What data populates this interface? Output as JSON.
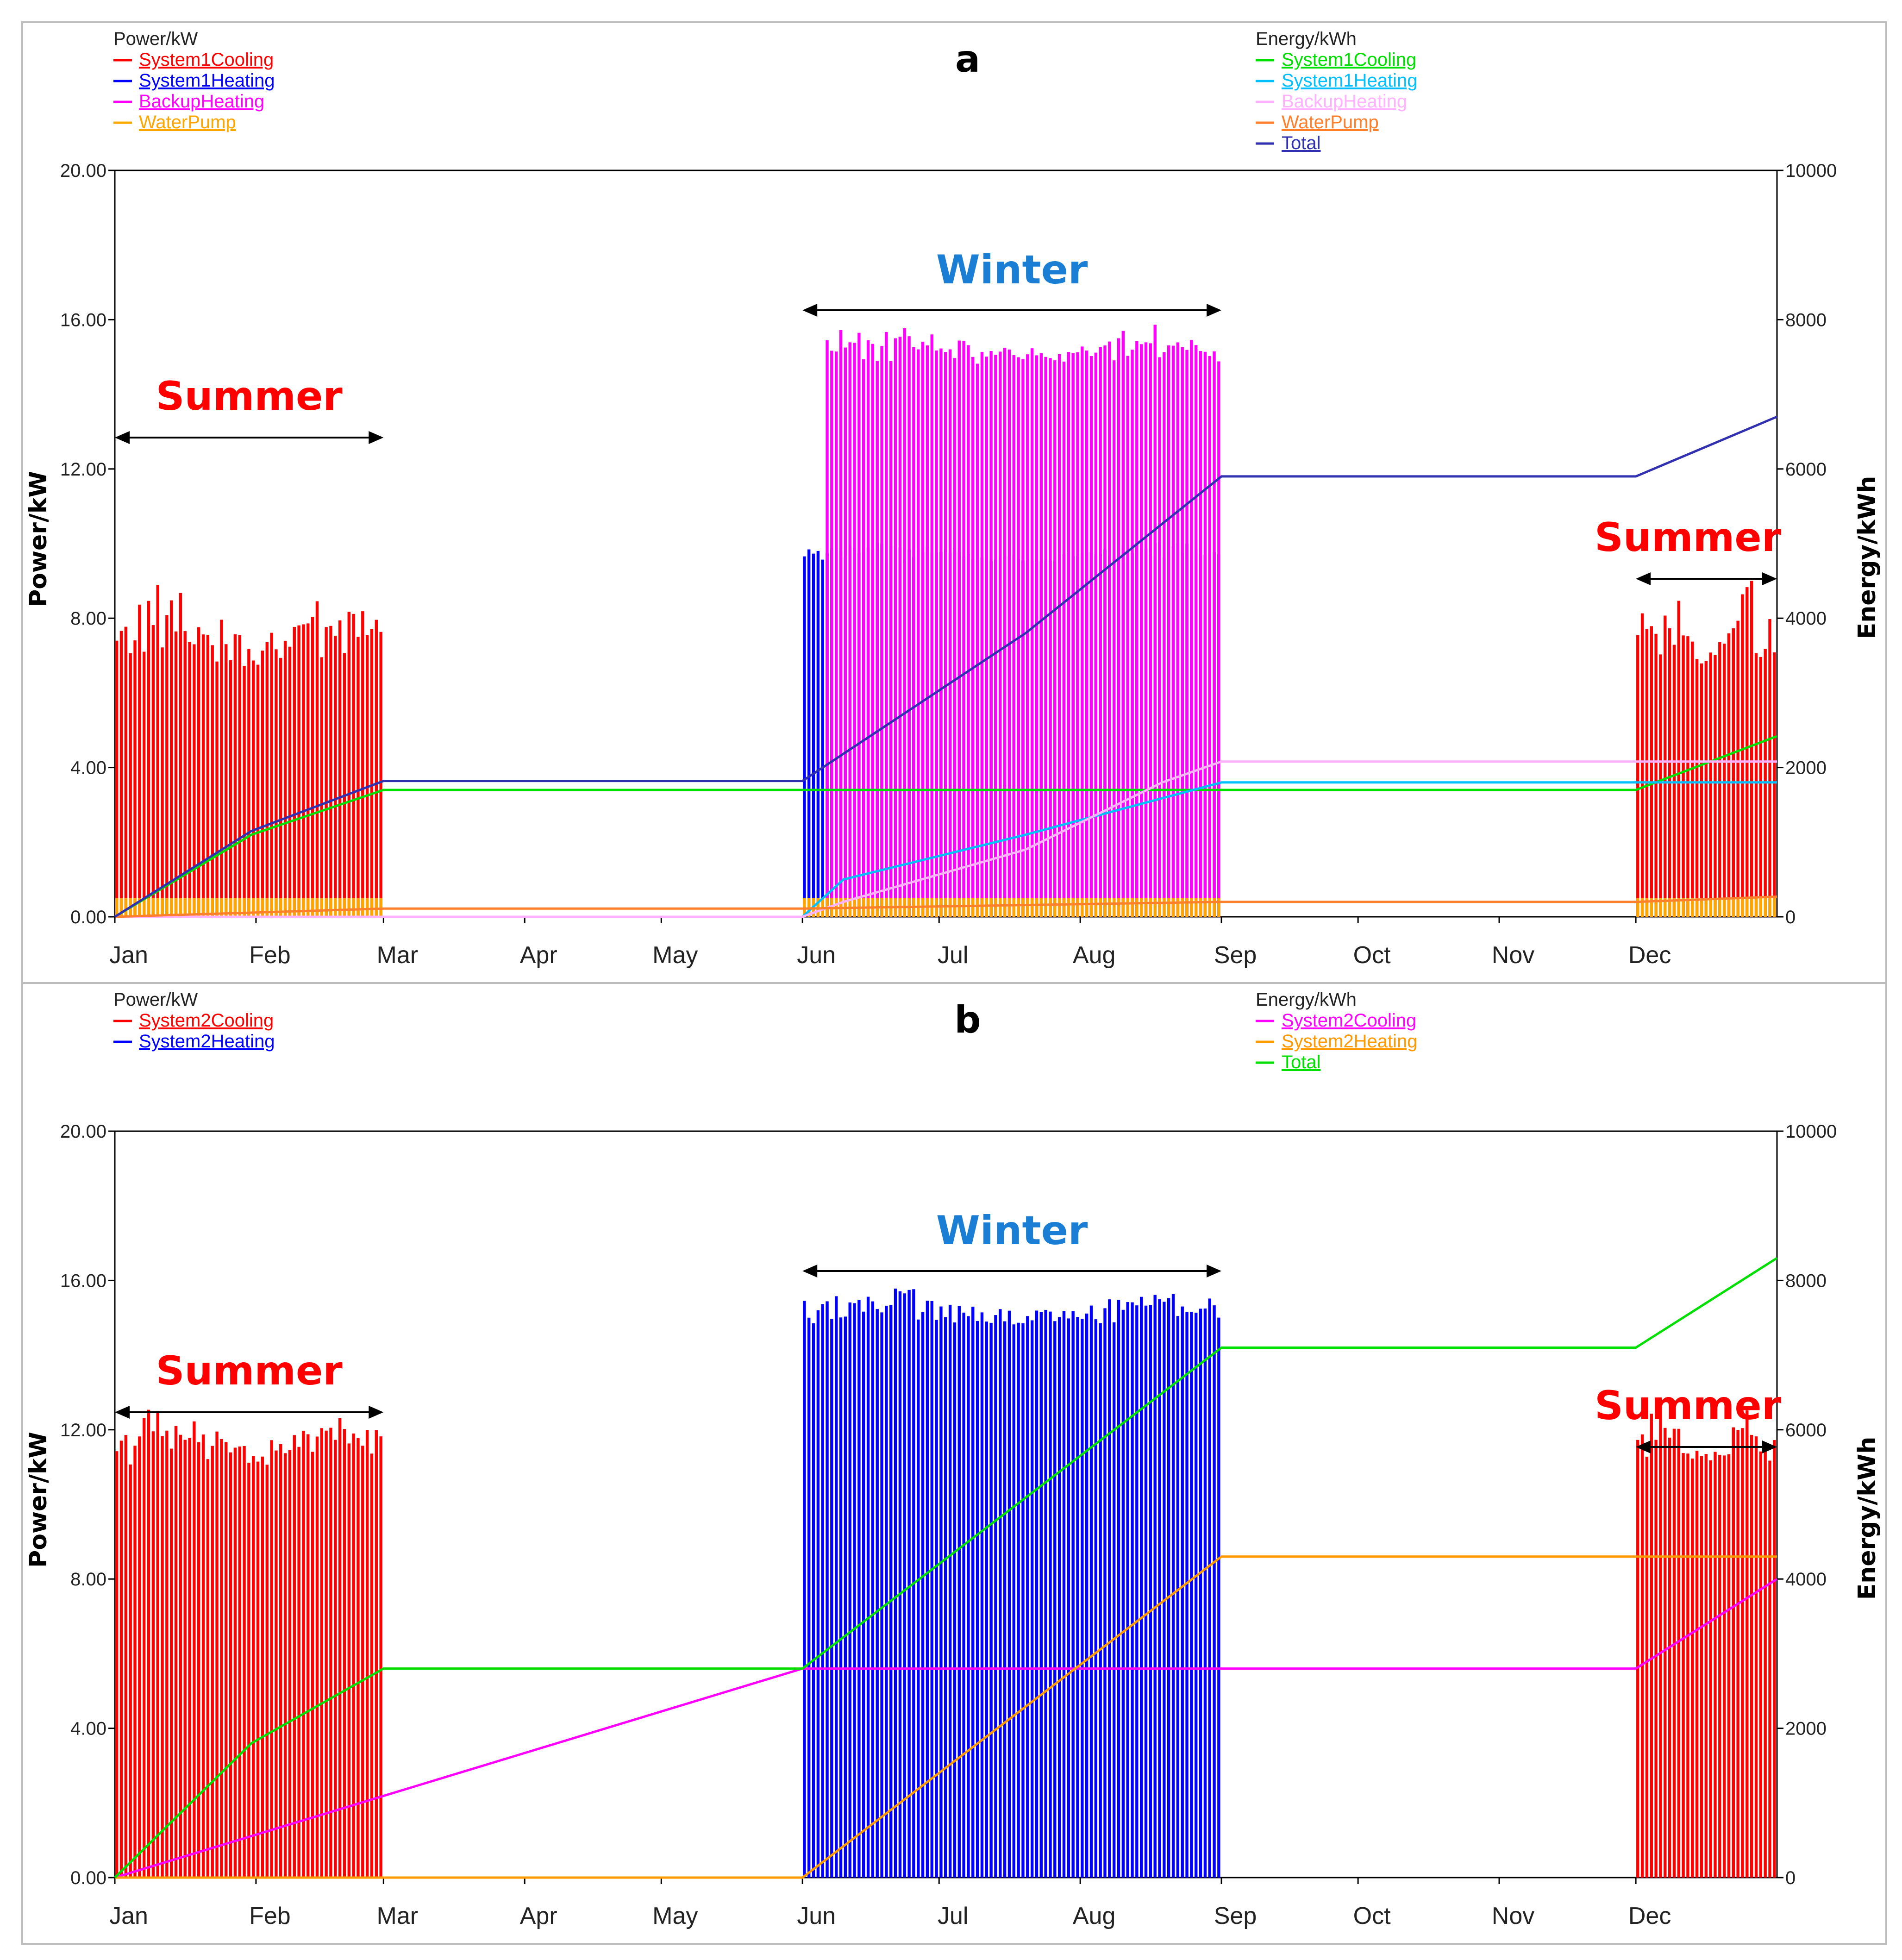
{
  "chart_data": [
    {
      "type": "line",
      "panel_label": "a",
      "title": "",
      "xlabel": "",
      "ylabel": "Power/kW",
      "y2label": "Energy/kWh",
      "ylim": [
        0,
        20
      ],
      "y2lim": [
        0,
        10000
      ],
      "yticks": [
        "0.00",
        "4.00",
        "8.00",
        "12.00",
        "16.00",
        "20.00"
      ],
      "y2ticks": [
        "0",
        "2000",
        "4000",
        "6000",
        "8000",
        "10000"
      ],
      "months": [
        "Jan",
        "Feb",
        "Mar",
        "Apr",
        "May",
        "Jun",
        "Jul",
        "Aug",
        "Sep",
        "Oct",
        "Nov",
        "Dec"
      ],
      "legend_left": {
        "title": "Power/kW",
        "items": [
          {
            "name": "System1Cooling",
            "color": "#ff0000"
          },
          {
            "name": "System1Heating",
            "color": "#0000ff"
          },
          {
            "name": "BackupHeating",
            "color": "#ff00ff"
          },
          {
            "name": "WaterPump",
            "color": "#ffa500"
          }
        ]
      },
      "legend_right": {
        "title": "Energy/kWh",
        "items": [
          {
            "name": "System1Cooling",
            "color": "#00e000"
          },
          {
            "name": "System1Heating",
            "color": "#00bfff"
          },
          {
            "name": "BackupHeating",
            "color": "#ffb0ff"
          },
          {
            "name": "WaterPump",
            "color": "#ff7f2a"
          },
          {
            "name": "Total",
            "color": "#3030b0"
          }
        ]
      },
      "annotations": [
        {
          "text": "Summer",
          "color": "#ff0000",
          "range_days": [
            0,
            59
          ]
        },
        {
          "text": "Winter",
          "color": "#1a7fd4",
          "range_days": [
            151,
            243
          ]
        },
        {
          "text": "Summer",
          "color": "#ff0000",
          "range_days": [
            334,
            365
          ]
        }
      ],
      "power_series": [
        {
          "name": "System1Cooling",
          "color": "#ff0000",
          "periods": [
            [
              0,
              59
            ],
            [
              334,
              365
            ]
          ],
          "base": 6.6,
          "peak": 9.0
        },
        {
          "name": "System1Heating",
          "color": "#0000ff",
          "periods": [
            [
              151,
              243
            ]
          ],
          "base": 9.5,
          "peak": 10.1
        },
        {
          "name": "BackupHeating",
          "color": "#ff00ff",
          "periods": [
            [
              156,
              243
            ]
          ],
          "base": 14.8,
          "peak": 15.9
        },
        {
          "name": "WaterPump",
          "color": "#ffa500",
          "periods": [
            [
              0,
              59
            ],
            [
              151,
              243
            ],
            [
              334,
              365
            ]
          ],
          "base": 0.5,
          "peak": 0.5
        }
      ],
      "energy_series": [
        {
          "name": "System1Cooling",
          "color": "#00e000",
          "x": [
            0,
            30,
            59,
            334,
            365
          ],
          "y": [
            0,
            1100,
            1700,
            1700,
            2420
          ]
        },
        {
          "name": "System1Heating",
          "color": "#00bfff",
          "x": [
            0,
            151,
            160,
            200,
            243,
            365
          ],
          "y": [
            0,
            0,
            500,
            1100,
            1800,
            1800
          ]
        },
        {
          "name": "BackupHeating",
          "color": "#ffb0ff",
          "x": [
            0,
            151,
            160,
            200,
            230,
            243,
            365
          ],
          "y": [
            0,
            0,
            200,
            900,
            1800,
            2080,
            2080
          ]
        },
        {
          "name": "WaterPump",
          "color": "#ff7f2a",
          "x": [
            0,
            59,
            151,
            243,
            334,
            365
          ],
          "y": [
            0,
            110,
            110,
            200,
            200,
            270
          ]
        },
        {
          "name": "Total",
          "color": "#3030b0",
          "x": [
            0,
            30,
            59,
            151,
            200,
            243,
            334,
            365
          ],
          "y": [
            0,
            1150,
            1820,
            1820,
            3800,
            5900,
            5900,
            6700
          ]
        }
      ]
    },
    {
      "type": "line",
      "panel_label": "b",
      "title": "",
      "xlabel": "",
      "ylabel": "Power/kW",
      "y2label": "Energy/kWh",
      "ylim": [
        0,
        20
      ],
      "y2lim": [
        0,
        10000
      ],
      "yticks": [
        "0.00",
        "4.00",
        "8.00",
        "12.00",
        "16.00",
        "20.00"
      ],
      "y2ticks": [
        "0",
        "2000",
        "4000",
        "6000",
        "8000",
        "10000"
      ],
      "months": [
        "Jan",
        "Feb",
        "Mar",
        "Apr",
        "May",
        "Jun",
        "Jul",
        "Aug",
        "Sep",
        "Oct",
        "Nov",
        "Dec"
      ],
      "legend_left": {
        "title": "Power/kW",
        "items": [
          {
            "name": "System2Cooling",
            "color": "#ff0000"
          },
          {
            "name": "System2Heating",
            "color": "#0000ff"
          }
        ]
      },
      "legend_right": {
        "title": "Energy/kWh",
        "items": [
          {
            "name": "System2Cooling",
            "color": "#ff00ff"
          },
          {
            "name": "System2Heating",
            "color": "#ff9900"
          },
          {
            "name": "Total",
            "color": "#00e000"
          }
        ]
      },
      "annotations": [
        {
          "text": "Summer",
          "color": "#ff0000",
          "range_days": [
            0,
            59
          ]
        },
        {
          "text": "Winter",
          "color": "#1a7fd4",
          "range_days": [
            151,
            243
          ]
        },
        {
          "text": "Summer",
          "color": "#ff0000",
          "range_days": [
            334,
            365
          ]
        }
      ],
      "power_series": [
        {
          "name": "System2Cooling",
          "color": "#ff0000",
          "periods": [
            [
              0,
              59
            ],
            [
              334,
              365
            ]
          ],
          "base": 11.0,
          "peak": 12.6
        },
        {
          "name": "System2Heating",
          "color": "#0000ff",
          "periods": [
            [
              151,
              243
            ]
          ],
          "base": 14.8,
          "peak": 15.9
        }
      ],
      "energy_series": [
        {
          "name": "System2Cooling",
          "color": "#ff00ff",
          "x": [
            0,
            151,
            334,
            365
          ],
          "y": [
            0,
            2800,
            2800,
            4000
          ]
        },
        {
          "name": "System2Heating",
          "color": "#ff9900",
          "x": [
            0,
            151,
            243,
            365
          ],
          "y": [
            0,
            0,
            4300,
            4300
          ]
        },
        {
          "name": "Total",
          "color": "#00e000",
          "x": [
            0,
            30,
            59,
            151,
            243,
            334,
            365
          ],
          "y": [
            0,
            1800,
            2800,
            2800,
            7100,
            7100,
            8300
          ]
        }
      ]
    }
  ]
}
